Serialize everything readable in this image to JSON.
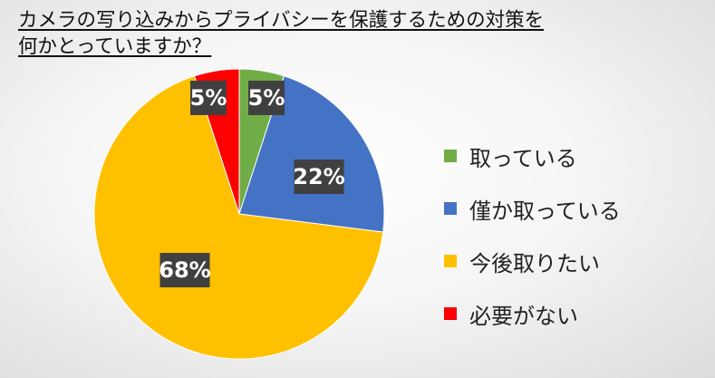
{
  "title": {
    "line1": "カメラの写り込みからプライバシーを保護するための対策を",
    "line2": "何かとっていますか？"
  },
  "chart_data": {
    "type": "pie",
    "start_angle": "12 o'clock",
    "direction": "clockwise",
    "legend_position": "right",
    "slices": [
      {
        "label": "取っている",
        "value": 5,
        "value_label": "5%",
        "color": "#70ad47"
      },
      {
        "label": "僅か取っている",
        "value": 22,
        "value_label": "22%",
        "color": "#4472c4"
      },
      {
        "label": "今後取りたい",
        "value": 68,
        "value_label": "68%",
        "color": "#ffc000"
      },
      {
        "label": "必要がない",
        "value": 5,
        "value_label": "5%",
        "color": "#ff0000"
      }
    ]
  }
}
